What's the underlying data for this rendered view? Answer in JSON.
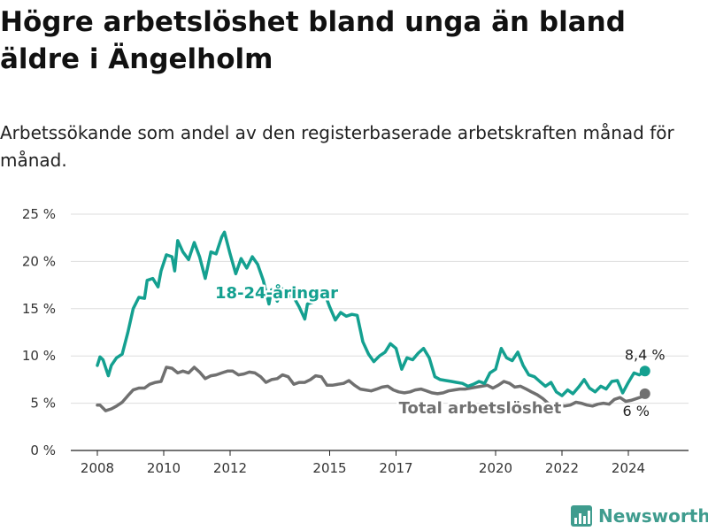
{
  "title": "Högre arbetslöshet bland unga än bland äldre i Ängelholm",
  "subtitle": "Arbetssökande som andel av den registerbaserade arbetskraften månad för månad.",
  "logo": {
    "text": "Newsworthy",
    "icon": "bar-chart-icon"
  },
  "chart_data": {
    "type": "line",
    "title": "Högre arbetslöshet bland unga än bland äldre i Ängelholm",
    "subtitle": "Arbetssökande som andel av den registerbaserade arbetskraften månad för månad.",
    "xlabel": "",
    "ylabel": "",
    "xlim": [
      2007.9,
      2025.1
    ],
    "ylim": [
      0,
      25
    ],
    "x_ticks": [
      2008,
      2010,
      2012,
      2015,
      2017,
      2020,
      2022,
      2024
    ],
    "x_tick_labels": [
      "2008",
      "2010",
      "2012",
      "2015",
      "2017",
      "2020",
      "2022",
      "2024"
    ],
    "y_ticks": [
      0,
      5,
      10,
      15,
      20,
      25
    ],
    "y_tick_labels": [
      "0 %",
      "5 %",
      "10 %",
      "15 %",
      "20 %",
      "25 %"
    ],
    "grid": "horizontal",
    "legend": "none",
    "series": [
      {
        "name": "18-24-åringar",
        "color": "#14a090",
        "end_label": "8,4 %",
        "points": [
          [
            2008.0,
            9.0
          ],
          [
            2008.08,
            9.9
          ],
          [
            2008.17,
            9.6
          ],
          [
            2008.33,
            7.9
          ],
          [
            2008.42,
            9.0
          ],
          [
            2008.58,
            9.8
          ],
          [
            2008.75,
            10.2
          ],
          [
            2008.92,
            12.5
          ],
          [
            2009.08,
            15.0
          ],
          [
            2009.25,
            16.2
          ],
          [
            2009.42,
            16.1
          ],
          [
            2009.5,
            18.0
          ],
          [
            2009.67,
            18.2
          ],
          [
            2009.83,
            17.3
          ],
          [
            2009.92,
            19.0
          ],
          [
            2010.08,
            20.7
          ],
          [
            2010.25,
            20.5
          ],
          [
            2010.33,
            19.0
          ],
          [
            2010.42,
            22.2
          ],
          [
            2010.58,
            21.0
          ],
          [
            2010.75,
            20.2
          ],
          [
            2010.92,
            22.0
          ],
          [
            2011.08,
            20.5
          ],
          [
            2011.25,
            18.2
          ],
          [
            2011.42,
            21.0
          ],
          [
            2011.58,
            20.8
          ],
          [
            2011.75,
            22.6
          ],
          [
            2011.83,
            23.1
          ],
          [
            2012.0,
            20.8
          ],
          [
            2012.17,
            18.7
          ],
          [
            2012.33,
            20.3
          ],
          [
            2012.5,
            19.3
          ],
          [
            2012.67,
            20.5
          ],
          [
            2012.83,
            19.7
          ],
          [
            2013.0,
            18.0
          ],
          [
            2013.17,
            15.5
          ],
          [
            2013.25,
            17.0
          ],
          [
            2013.42,
            15.8
          ],
          [
            2013.58,
            17.1
          ],
          [
            2013.75,
            16.4
          ],
          [
            2013.92,
            16.2
          ],
          [
            2014.08,
            15.2
          ],
          [
            2014.25,
            13.9
          ],
          [
            2014.33,
            15.5
          ],
          [
            2014.5,
            15.7
          ],
          [
            2014.67,
            16.6
          ],
          [
            2014.83,
            16.8
          ],
          [
            2015.0,
            15.2
          ],
          [
            2015.17,
            13.8
          ],
          [
            2015.33,
            14.6
          ],
          [
            2015.5,
            14.2
          ],
          [
            2015.67,
            14.4
          ],
          [
            2015.83,
            14.3
          ],
          [
            2016.0,
            11.5
          ],
          [
            2016.17,
            10.2
          ],
          [
            2016.33,
            9.4
          ],
          [
            2016.5,
            10.0
          ],
          [
            2016.67,
            10.4
          ],
          [
            2016.83,
            11.3
          ],
          [
            2017.0,
            10.8
          ],
          [
            2017.17,
            8.6
          ],
          [
            2017.33,
            9.8
          ],
          [
            2017.5,
            9.6
          ],
          [
            2017.67,
            10.3
          ],
          [
            2017.83,
            10.8
          ],
          [
            2018.0,
            9.8
          ],
          [
            2018.17,
            7.8
          ],
          [
            2018.33,
            7.5
          ],
          [
            2018.5,
            7.4
          ],
          [
            2018.67,
            7.3
          ],
          [
            2018.83,
            7.2
          ],
          [
            2019.0,
            7.1
          ],
          [
            2019.17,
            6.8
          ],
          [
            2019.33,
            7.0
          ],
          [
            2019.5,
            7.3
          ],
          [
            2019.67,
            7.1
          ],
          [
            2019.83,
            8.2
          ],
          [
            2020.0,
            8.6
          ],
          [
            2020.17,
            10.8
          ],
          [
            2020.33,
            9.8
          ],
          [
            2020.5,
            9.5
          ],
          [
            2020.67,
            10.4
          ],
          [
            2020.83,
            9.0
          ],
          [
            2021.0,
            8.0
          ],
          [
            2021.17,
            7.8
          ],
          [
            2021.33,
            7.3
          ],
          [
            2021.5,
            6.8
          ],
          [
            2021.67,
            7.2
          ],
          [
            2021.83,
            6.2
          ],
          [
            2022.0,
            5.8
          ],
          [
            2022.17,
            6.4
          ],
          [
            2022.33,
            6.0
          ],
          [
            2022.5,
            6.7
          ],
          [
            2022.67,
            7.5
          ],
          [
            2022.83,
            6.6
          ],
          [
            2023.0,
            6.2
          ],
          [
            2023.17,
            6.8
          ],
          [
            2023.33,
            6.5
          ],
          [
            2023.5,
            7.3
          ],
          [
            2023.67,
            7.4
          ],
          [
            2023.83,
            6.1
          ],
          [
            2024.0,
            7.2
          ],
          [
            2024.17,
            8.2
          ],
          [
            2024.33,
            8.0
          ],
          [
            2024.5,
            8.4
          ]
        ]
      },
      {
        "name": "Total arbetslöshet",
        "color": "#707070",
        "end_label": "6 %",
        "points": [
          [
            2008.0,
            4.8
          ],
          [
            2008.08,
            4.8
          ],
          [
            2008.25,
            4.2
          ],
          [
            2008.42,
            4.4
          ],
          [
            2008.58,
            4.7
          ],
          [
            2008.75,
            5.1
          ],
          [
            2008.92,
            5.8
          ],
          [
            2009.08,
            6.4
          ],
          [
            2009.25,
            6.6
          ],
          [
            2009.42,
            6.6
          ],
          [
            2009.58,
            7.0
          ],
          [
            2009.75,
            7.2
          ],
          [
            2009.92,
            7.3
          ],
          [
            2010.08,
            8.8
          ],
          [
            2010.25,
            8.7
          ],
          [
            2010.42,
            8.2
          ],
          [
            2010.58,
            8.4
          ],
          [
            2010.75,
            8.2
          ],
          [
            2010.92,
            8.8
          ],
          [
            2011.08,
            8.3
          ],
          [
            2011.25,
            7.6
          ],
          [
            2011.42,
            7.9
          ],
          [
            2011.58,
            8.0
          ],
          [
            2011.75,
            8.2
          ],
          [
            2011.92,
            8.4
          ],
          [
            2012.08,
            8.4
          ],
          [
            2012.25,
            8.0
          ],
          [
            2012.42,
            8.1
          ],
          [
            2012.58,
            8.3
          ],
          [
            2012.75,
            8.2
          ],
          [
            2012.92,
            7.8
          ],
          [
            2013.08,
            7.2
          ],
          [
            2013.25,
            7.5
          ],
          [
            2013.42,
            7.6
          ],
          [
            2013.58,
            8.0
          ],
          [
            2013.75,
            7.8
          ],
          [
            2013.92,
            7.0
          ],
          [
            2014.08,
            7.2
          ],
          [
            2014.25,
            7.2
          ],
          [
            2014.42,
            7.5
          ],
          [
            2014.58,
            7.9
          ],
          [
            2014.75,
            7.8
          ],
          [
            2014.92,
            6.9
          ],
          [
            2015.08,
            6.9
          ],
          [
            2015.25,
            7.0
          ],
          [
            2015.42,
            7.1
          ],
          [
            2015.58,
            7.4
          ],
          [
            2015.75,
            6.9
          ],
          [
            2015.92,
            6.5
          ],
          [
            2016.08,
            6.4
          ],
          [
            2016.25,
            6.3
          ],
          [
            2016.42,
            6.5
          ],
          [
            2016.58,
            6.7
          ],
          [
            2016.75,
            6.8
          ],
          [
            2016.92,
            6.4
          ],
          [
            2017.08,
            6.2
          ],
          [
            2017.25,
            6.1
          ],
          [
            2017.42,
            6.2
          ],
          [
            2017.58,
            6.4
          ],
          [
            2017.75,
            6.5
          ],
          [
            2017.92,
            6.3
          ],
          [
            2018.08,
            6.1
          ],
          [
            2018.25,
            6.0
          ],
          [
            2018.42,
            6.1
          ],
          [
            2018.58,
            6.3
          ],
          [
            2018.75,
            6.4
          ],
          [
            2018.92,
            6.5
          ],
          [
            2019.08,
            6.5
          ],
          [
            2019.25,
            6.6
          ],
          [
            2019.42,
            6.7
          ],
          [
            2019.58,
            6.8
          ],
          [
            2019.75,
            6.9
          ],
          [
            2019.92,
            6.6
          ],
          [
            2020.08,
            6.9
          ],
          [
            2020.25,
            7.3
          ],
          [
            2020.42,
            7.1
          ],
          [
            2020.58,
            6.7
          ],
          [
            2020.75,
            6.8
          ],
          [
            2020.92,
            6.5
          ],
          [
            2021.08,
            6.2
          ],
          [
            2021.25,
            5.9
          ],
          [
            2021.42,
            5.5
          ],
          [
            2021.58,
            5.0
          ],
          [
            2021.75,
            4.7
          ],
          [
            2021.92,
            4.8
          ],
          [
            2022.08,
            4.7
          ],
          [
            2022.25,
            4.8
          ],
          [
            2022.42,
            5.1
          ],
          [
            2022.58,
            5.0
          ],
          [
            2022.75,
            4.8
          ],
          [
            2022.92,
            4.7
          ],
          [
            2023.08,
            4.9
          ],
          [
            2023.25,
            5.0
          ],
          [
            2023.42,
            4.9
          ],
          [
            2023.58,
            5.4
          ],
          [
            2023.75,
            5.6
          ],
          [
            2023.92,
            5.2
          ],
          [
            2024.08,
            5.3
          ],
          [
            2024.25,
            5.5
          ],
          [
            2024.42,
            5.7
          ],
          [
            2024.5,
            6.0
          ]
        ]
      }
    ]
  }
}
